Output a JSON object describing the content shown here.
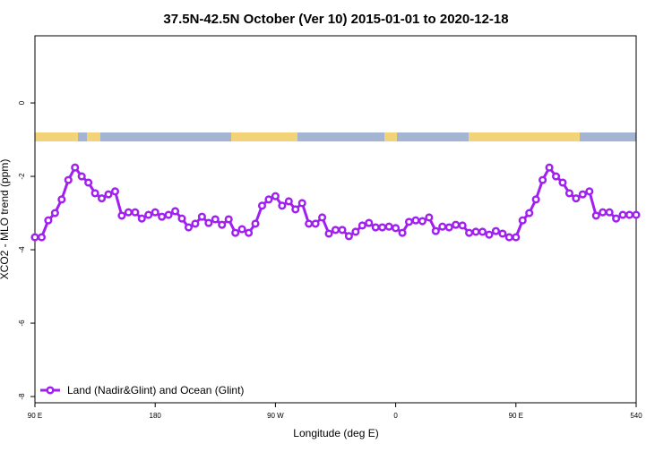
{
  "chart_data": {
    "type": "line",
    "title": "37.5N-42.5N October (Ver 10)   2015-01-01 to 2020-12-18",
    "x_label": "Longitude (deg E)",
    "y_label": "XCO2 - MLO trend (ppm)",
    "x": [
      90,
      95,
      100,
      105,
      110,
      115,
      120,
      125,
      130,
      135,
      140,
      145,
      150,
      155,
      160,
      165,
      170,
      175,
      180,
      185,
      190,
      195,
      200,
      205,
      210,
      215,
      220,
      225,
      230,
      235,
      240,
      245,
      250,
      255,
      260,
      265,
      270,
      275,
      280,
      285,
      290,
      295,
      300,
      305,
      310,
      315,
      320,
      325,
      330,
      335,
      340,
      345,
      350,
      355,
      360,
      365,
      370,
      375,
      380,
      385,
      390,
      395,
      400,
      405,
      410,
      415,
      420,
      425,
      430,
      435,
      440,
      445,
      450,
      455,
      460,
      465,
      470,
      475,
      480,
      485,
      490,
      495,
      500,
      505,
      510,
      515,
      520,
      525,
      530,
      535,
      540
    ],
    "series": [
      {
        "name": "Land (Nadir&Glint) and Ocean (Glint)",
        "color": "#a020f0",
        "values": [
          -3.66,
          -3.66,
          -3.2,
          -3.0,
          -2.63,
          -2.1,
          -1.76,
          -2.0,
          -2.17,
          -2.46,
          -2.6,
          -2.49,
          -2.41,
          -3.07,
          -2.98,
          -2.98,
          -3.15,
          -3.05,
          -2.98,
          -3.1,
          -3.05,
          -2.95,
          -3.15,
          -3.39,
          -3.29,
          -3.1,
          -3.27,
          -3.17,
          -3.32,
          -3.17,
          -3.54,
          -3.44,
          -3.54,
          -3.29,
          -2.8,
          -2.63,
          -2.54,
          -2.8,
          -2.68,
          -2.9,
          -2.73,
          -3.29,
          -3.29,
          -3.12,
          -3.56,
          -3.46,
          -3.46,
          -3.63,
          -3.51,
          -3.34,
          -3.27,
          -3.39,
          -3.39,
          -3.37,
          -3.41,
          -3.54,
          -3.24,
          -3.2,
          -3.22,
          -3.12,
          -3.49,
          -3.37,
          -3.39,
          -3.32,
          -3.34,
          -3.54,
          -3.51,
          -3.51,
          -3.59,
          -3.49,
          -3.56,
          -3.66,
          -3.66,
          -3.2,
          -3.0,
          -2.63,
          -2.1,
          -1.76,
          -2.0,
          -2.17,
          -2.46,
          -2.6,
          -2.49,
          -2.41,
          -3.07,
          -2.98,
          -2.98,
          -3.15,
          -3.05,
          -3.05,
          -3.05
        ]
      }
    ],
    "xlim": [
      90,
      540
    ],
    "xticks": [
      {
        "value": 90,
        "label": "90 E"
      },
      180,
      {
        "value": 270,
        "label": "90 W"
      },
      {
        "value": 360,
        "label": "0"
      },
      {
        "value": 450,
        "label": "90 E"
      },
      540
    ],
    "ylim": [
      -8.17,
      1.83
    ],
    "yticks": [
      -8,
      -6,
      -4,
      -2,
      0
    ],
    "legend": "bottom-left"
  }
}
